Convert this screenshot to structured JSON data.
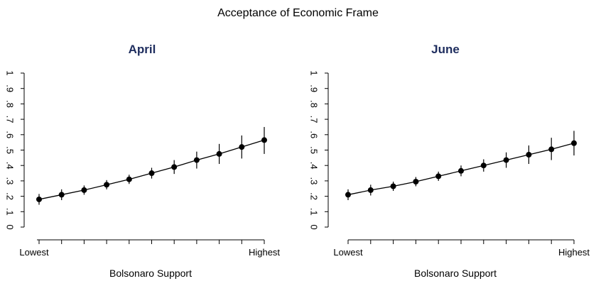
{
  "title": "Acceptance of Economic Frame",
  "chart_data": [
    {
      "type": "line",
      "title": "April",
      "xlabel": "Bolsonaro Support",
      "ylabel": "",
      "x_tick_labels": [
        "Lowest",
        "Highest"
      ],
      "y_ticks": [
        0,
        0.1,
        0.2,
        0.3,
        0.4,
        0.5,
        0.6,
        0.7,
        0.8,
        0.9,
        1
      ],
      "y_tick_labels": [
        "0",
        ".1",
        ".2",
        ".3",
        ".4",
        ".5",
        ".6",
        ".7",
        ".8",
        ".9",
        "1"
      ],
      "ylim": [
        0,
        1
      ],
      "x": [
        1,
        2,
        3,
        4,
        5,
        6,
        7,
        8,
        9,
        10,
        11
      ],
      "series": [
        {
          "values": [
            0.18,
            0.21,
            0.24,
            0.275,
            0.31,
            0.35,
            0.39,
            0.435,
            0.475,
            0.52,
            0.565
          ],
          "ci_low": [
            0.145,
            0.175,
            0.21,
            0.245,
            0.28,
            0.315,
            0.345,
            0.38,
            0.41,
            0.445,
            0.475
          ],
          "ci_high": [
            0.215,
            0.245,
            0.27,
            0.305,
            0.34,
            0.385,
            0.435,
            0.49,
            0.54,
            0.595,
            0.65
          ]
        }
      ],
      "grid": false
    },
    {
      "type": "line",
      "title": "June",
      "xlabel": "Bolsonaro Support",
      "ylabel": "",
      "x_tick_labels": [
        "Lowest",
        "Highest"
      ],
      "y_ticks": [
        0,
        0.1,
        0.2,
        0.3,
        0.4,
        0.5,
        0.6,
        0.7,
        0.8,
        0.9,
        1
      ],
      "y_tick_labels": [
        "0",
        ".1",
        ".2",
        ".3",
        ".4",
        ".5",
        ".6",
        ".7",
        ".8",
        ".9",
        "1"
      ],
      "ylim": [
        0,
        1
      ],
      "x": [
        1,
        2,
        3,
        4,
        5,
        6,
        7,
        8,
        9,
        10,
        11
      ],
      "series": [
        {
          "values": [
            0.21,
            0.24,
            0.265,
            0.295,
            0.33,
            0.365,
            0.4,
            0.435,
            0.47,
            0.505,
            0.545
          ],
          "ci_low": [
            0.175,
            0.205,
            0.235,
            0.265,
            0.3,
            0.33,
            0.36,
            0.385,
            0.41,
            0.435,
            0.465
          ],
          "ci_high": [
            0.245,
            0.275,
            0.295,
            0.325,
            0.36,
            0.4,
            0.44,
            0.485,
            0.53,
            0.58,
            0.625
          ]
        }
      ],
      "grid": false
    }
  ]
}
